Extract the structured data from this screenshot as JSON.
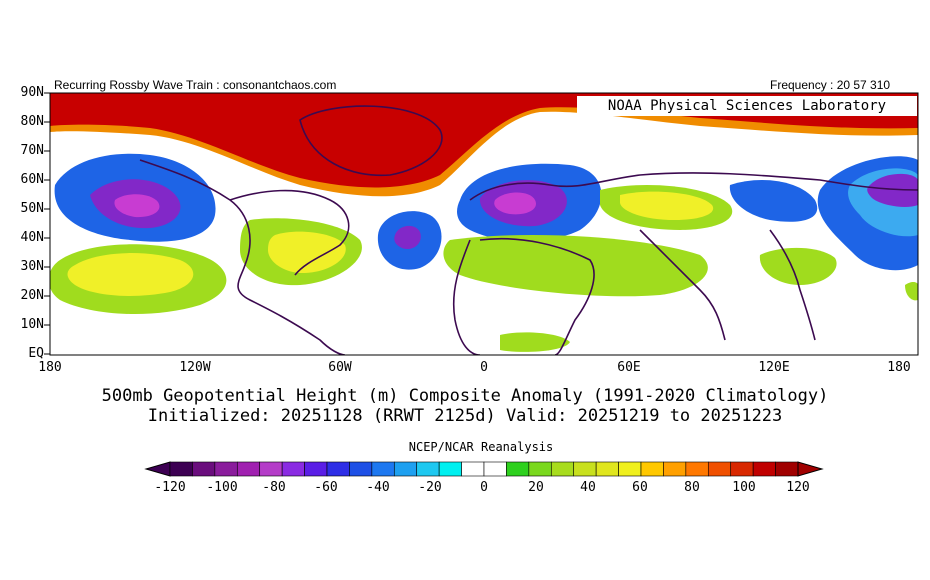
{
  "header": {
    "left_text": "Recurring Rossby Wave Train : consonantchaos.com",
    "right_text": "Frequency : 20 57 310",
    "lab_label": "NOAA Physical Sciences Laboratory"
  },
  "axes": {
    "lat_labels": [
      "90N",
      "80N",
      "70N",
      "60N",
      "50N",
      "40N",
      "30N",
      "20N",
      "10N",
      "EQ"
    ],
    "lon_labels": [
      "180",
      "120W",
      "60W",
      "0",
      "60E",
      "120E",
      "180"
    ]
  },
  "titles": {
    "line1": "500mb Geopotential Height (m) Composite Anomaly (1991-2020 Climatology)",
    "line2": "Initialized: 20251128 (RRWT 2125d) Valid: 20251219 to 20251223",
    "source": "NCEP/NCAR Reanalysis"
  },
  "colorbar": {
    "labels": [
      "-120",
      "-100",
      "-80",
      "-60",
      "-40",
      "-20",
      "0",
      "20",
      "40",
      "60",
      "80",
      "100",
      "120"
    ],
    "colors": [
      "#3d0053",
      "#6a0d7d",
      "#8a1c9c",
      "#a020b0",
      "#b43cc8",
      "#8a2be2",
      "#5a1ee6",
      "#2e2ee6",
      "#1e50e6",
      "#1e78f0",
      "#1ea0f0",
      "#1ec8f0",
      "#00f0f0",
      "#ffffff",
      "#ffffff",
      "#2ed01e",
      "#7ad81e",
      "#a8dc1e",
      "#c8e01e",
      "#e0e61e",
      "#f0f01e",
      "#ffc800",
      "#ffa000",
      "#ff7800",
      "#f05000",
      "#d82800",
      "#c00000",
      "#a00000"
    ]
  },
  "map_colors": {
    "red": "#c80000",
    "orange": "#f08c00",
    "yellow": "#f0f028",
    "lightgreen": "#a0dc1e",
    "green": "#46cd1e",
    "blue": "#1e64e6",
    "lightblue": "#3caaf0",
    "purple": "#8228c8",
    "magenta": "#c83cd2",
    "darkpurple": "#5a1478",
    "coast": "#3c0a50"
  }
}
